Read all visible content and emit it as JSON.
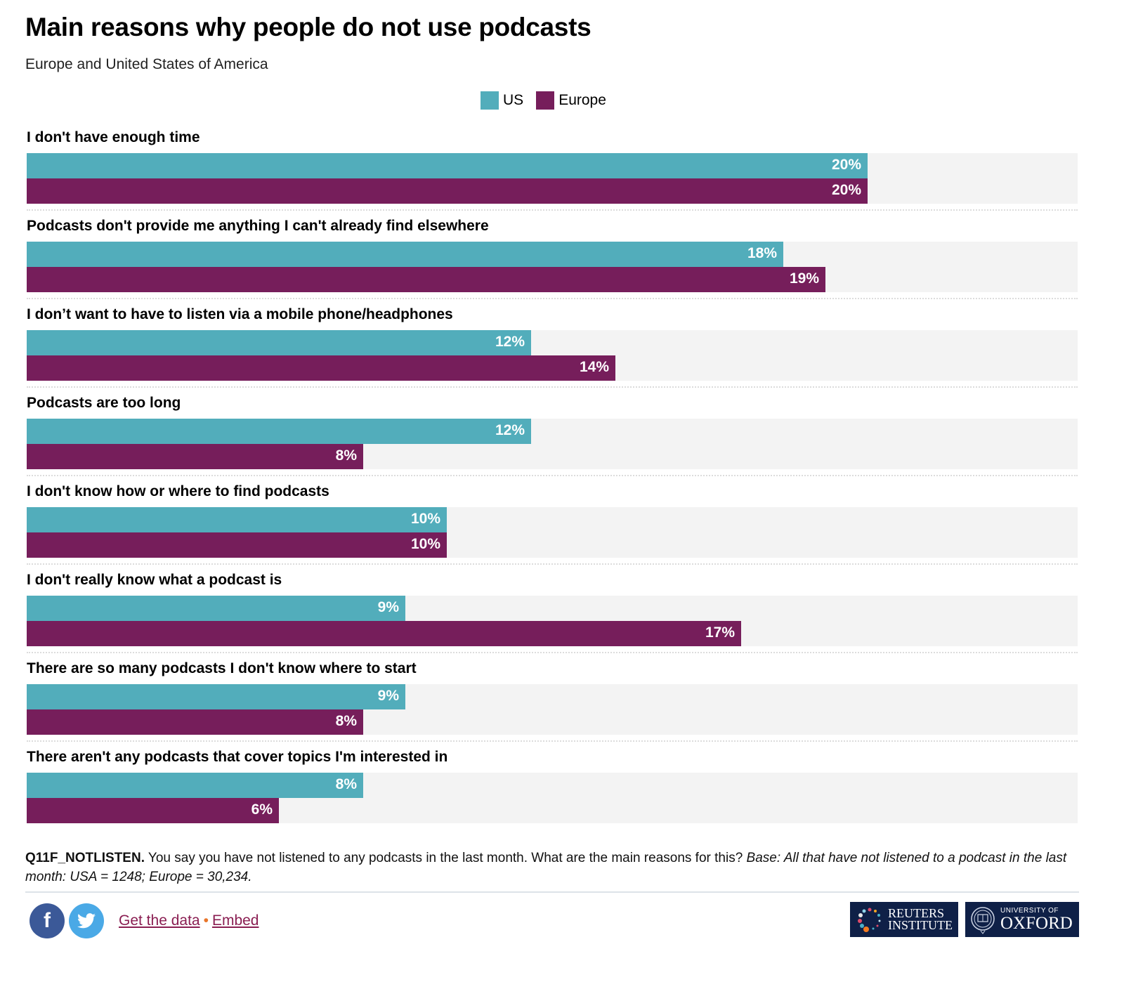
{
  "chart_data": {
    "type": "bar",
    "orientation": "horizontal",
    "title": "Main reasons why people do not use podcasts",
    "subtitle": "Europe and United States of America",
    "xlabel": "",
    "ylabel": "",
    "xlim": [
      0,
      25
    ],
    "value_suffix": "%",
    "grid": false,
    "legend_position": "top-center",
    "categories": [
      "I don't have enough time",
      "Podcasts don't provide me anything I can't already find elsewhere",
      "I don’t want to have to listen via a mobile phone/headphones",
      "Podcasts are too long",
      "I don't know how or where to find podcasts",
      "I don't really know what a podcast is",
      "There are so many podcasts I don't know where to start",
      "There aren't any podcasts that cover topics I'm interested in"
    ],
    "series": [
      {
        "name": "US",
        "color": "#52adbb",
        "values": [
          20,
          18,
          12,
          12,
          10,
          9,
          9,
          8
        ]
      },
      {
        "name": "Europe",
        "color": "#761e5b",
        "values": [
          20,
          19,
          14,
          8,
          10,
          17,
          8,
          6
        ]
      }
    ]
  },
  "note": {
    "code": "Q11F_NOTLISTEN.",
    "question": " You say you have not listened to any podcasts in the last month. What are the main reasons for this? ",
    "base": "Base: All that have not listened to a podcast in the last month: USA = 1248; Europe = 30,234."
  },
  "footer": {
    "facebook_icon": "f",
    "twitter_icon": "twitter-bird",
    "get_data_label": "Get the data",
    "separator": "•",
    "embed_label": "Embed",
    "logos": {
      "reuters_line1": "REUTERS",
      "reuters_line2": "INSTITUTE",
      "oxford_line1": "UNIVERSITY OF",
      "oxford_line2": "OXFORD"
    }
  },
  "colors": {
    "track": "#f3f3f3",
    "link": "#8a1e52",
    "logo_bg": "#0f2047"
  }
}
